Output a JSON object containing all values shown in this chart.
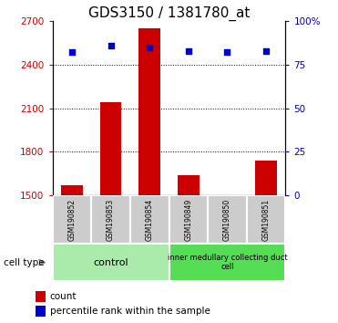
{
  "title": "GDS3150 / 1381780_at",
  "samples": [
    "GSM190852",
    "GSM190853",
    "GSM190854",
    "GSM190849",
    "GSM190850",
    "GSM190851"
  ],
  "counts": [
    1570,
    2140,
    2650,
    1640,
    1490,
    1740
  ],
  "percentiles": [
    82,
    86,
    85,
    83,
    82,
    83
  ],
  "ylim_left": [
    1500,
    2700
  ],
  "ylim_right": [
    0,
    100
  ],
  "yticks_left": [
    1500,
    1800,
    2100,
    2400,
    2700
  ],
  "yticks_right": [
    0,
    25,
    50,
    75,
    100
  ],
  "bar_color": "#cc0000",
  "dot_color": "#0000cc",
  "left_tick_color": "#cc0000",
  "right_tick_color": "#0000bb",
  "title_fontsize": 11,
  "group1_label": "control",
  "group2_label": "inner medullary collecting duct\ncell",
  "group1_indices": [
    0,
    1,
    2
  ],
  "group2_indices": [
    3,
    4,
    5
  ],
  "group1_color": "#aaeaaa",
  "group2_color": "#55dd55",
  "sample_box_color": "#cccccc",
  "cell_type_label": "cell type",
  "legend_count": "count",
  "legend_pct": "percentile rank within the sample",
  "baseline": 1500
}
